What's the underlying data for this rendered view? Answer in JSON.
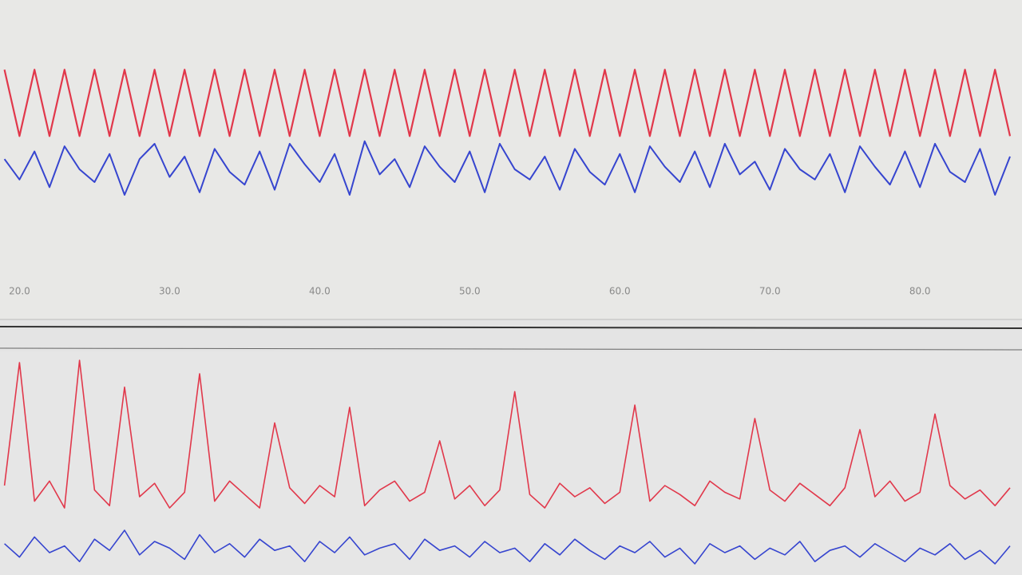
{
  "chart_data": [
    {
      "type": "line",
      "x": [
        19,
        20,
        21,
        22,
        23,
        24,
        25,
        26,
        27,
        28,
        29,
        30,
        31,
        32,
        33,
        34,
        35,
        36,
        37,
        38,
        39,
        40,
        41,
        42,
        43,
        44,
        45,
        46,
        47,
        48,
        49,
        50,
        51,
        52,
        53,
        54,
        55,
        56,
        57,
        58,
        59,
        60,
        61,
        62,
        63,
        64,
        65,
        66,
        67,
        68,
        69,
        70,
        71,
        72,
        73,
        74,
        75,
        76,
        77,
        78,
        79,
        80,
        81,
        82,
        83,
        84,
        85,
        86
      ],
      "xlim": [
        18.7,
        86.8
      ],
      "xticks": [
        {
          "value": 20,
          "label": "20.0"
        },
        {
          "value": 30,
          "label": "30.0"
        },
        {
          "value": 40,
          "label": "40.0"
        },
        {
          "value": 50,
          "label": "50.0"
        },
        {
          "value": 60,
          "label": "60.0"
        },
        {
          "value": 70,
          "label": "70.0"
        },
        {
          "value": 80,
          "label": "80.0"
        }
      ],
      "ylim": [
        0,
        1
      ],
      "series": [
        {
          "color": "#e0253a",
          "values": [
            0.79,
            0.53,
            0.79,
            0.53,
            0.79,
            0.53,
            0.79,
            0.53,
            0.79,
            0.53,
            0.79,
            0.53,
            0.79,
            0.53,
            0.79,
            0.53,
            0.79,
            0.53,
            0.79,
            0.53,
            0.79,
            0.53,
            0.79,
            0.53,
            0.79,
            0.53,
            0.79,
            0.53,
            0.79,
            0.53,
            0.79,
            0.53,
            0.79,
            0.53,
            0.79,
            0.53,
            0.79,
            0.53,
            0.79,
            0.53,
            0.79,
            0.53,
            0.79,
            0.53,
            0.79,
            0.53,
            0.79,
            0.53,
            0.79,
            0.53,
            0.79,
            0.53,
            0.79,
            0.53,
            0.79,
            0.53,
            0.79,
            0.53,
            0.79,
            0.53,
            0.79,
            0.53,
            0.79,
            0.53,
            0.79,
            0.53,
            0.79,
            0.53
          ]
        },
        {
          "color": "#2233cc",
          "values": [
            0.44,
            0.36,
            0.47,
            0.33,
            0.49,
            0.4,
            0.35,
            0.46,
            0.3,
            0.44,
            0.5,
            0.37,
            0.45,
            0.31,
            0.48,
            0.39,
            0.34,
            0.47,
            0.32,
            0.5,
            0.42,
            0.35,
            0.46,
            0.3,
            0.51,
            0.38,
            0.44,
            0.33,
            0.49,
            0.41,
            0.35,
            0.47,
            0.31,
            0.5,
            0.4,
            0.36,
            0.45,
            0.32,
            0.48,
            0.39,
            0.34,
            0.46,
            0.31,
            0.49,
            0.41,
            0.35,
            0.47,
            0.33,
            0.5,
            0.38,
            0.43,
            0.32,
            0.48,
            0.4,
            0.36,
            0.46,
            0.31,
            0.49,
            0.41,
            0.34,
            0.47,
            0.33,
            0.5,
            0.39,
            0.35,
            0.48,
            0.3,
            0.45
          ]
        }
      ]
    },
    {
      "type": "line",
      "x": [
        19,
        20,
        21,
        22,
        23,
        24,
        25,
        26,
        27,
        28,
        29,
        30,
        31,
        32,
        33,
        34,
        35,
        36,
        37,
        38,
        39,
        40,
        41,
        42,
        43,
        44,
        45,
        46,
        47,
        48,
        49,
        50,
        51,
        52,
        53,
        54,
        55,
        56,
        57,
        58,
        59,
        60,
        61,
        62,
        63,
        64,
        65,
        66,
        67,
        68,
        69,
        70,
        71,
        72,
        73,
        74,
        75,
        76,
        77,
        78,
        79,
        80,
        81,
        82,
        83,
        84,
        85,
        86
      ],
      "xlim": [
        18.7,
        86.8
      ],
      "ylim": [
        0,
        1
      ],
      "series": [
        {
          "color": "#e0253a",
          "values": [
            0.4,
            0.95,
            0.33,
            0.42,
            0.3,
            0.96,
            0.38,
            0.31,
            0.84,
            0.35,
            0.41,
            0.3,
            0.37,
            0.9,
            0.33,
            0.42,
            0.36,
            0.3,
            0.68,
            0.39,
            0.32,
            0.4,
            0.35,
            0.75,
            0.31,
            0.38,
            0.42,
            0.33,
            0.37,
            0.6,
            0.34,
            0.4,
            0.31,
            0.38,
            0.82,
            0.36,
            0.3,
            0.41,
            0.35,
            0.39,
            0.32,
            0.37,
            0.76,
            0.33,
            0.4,
            0.36,
            0.31,
            0.42,
            0.37,
            0.34,
            0.7,
            0.38,
            0.33,
            0.41,
            0.36,
            0.31,
            0.39,
            0.65,
            0.35,
            0.42,
            0.33,
            0.37,
            0.72,
            0.4,
            0.34,
            0.38,
            0.31,
            0.39
          ]
        },
        {
          "color": "#2233cc",
          "values": [
            0.14,
            0.08,
            0.17,
            0.1,
            0.13,
            0.06,
            0.16,
            0.11,
            0.2,
            0.09,
            0.15,
            0.12,
            0.07,
            0.18,
            0.1,
            0.14,
            0.08,
            0.16,
            0.11,
            0.13,
            0.06,
            0.15,
            0.1,
            0.17,
            0.09,
            0.12,
            0.14,
            0.07,
            0.16,
            0.11,
            0.13,
            0.08,
            0.15,
            0.1,
            0.12,
            0.06,
            0.14,
            0.09,
            0.16,
            0.11,
            0.07,
            0.13,
            0.1,
            0.15,
            0.08,
            0.12,
            0.05,
            0.14,
            0.1,
            0.13,
            0.07,
            0.12,
            0.09,
            0.15,
            0.06,
            0.11,
            0.13,
            0.08,
            0.14,
            0.1,
            0.06,
            0.12,
            0.09,
            0.14,
            0.07,
            0.11,
            0.05,
            0.13
          ]
        }
      ]
    }
  ]
}
